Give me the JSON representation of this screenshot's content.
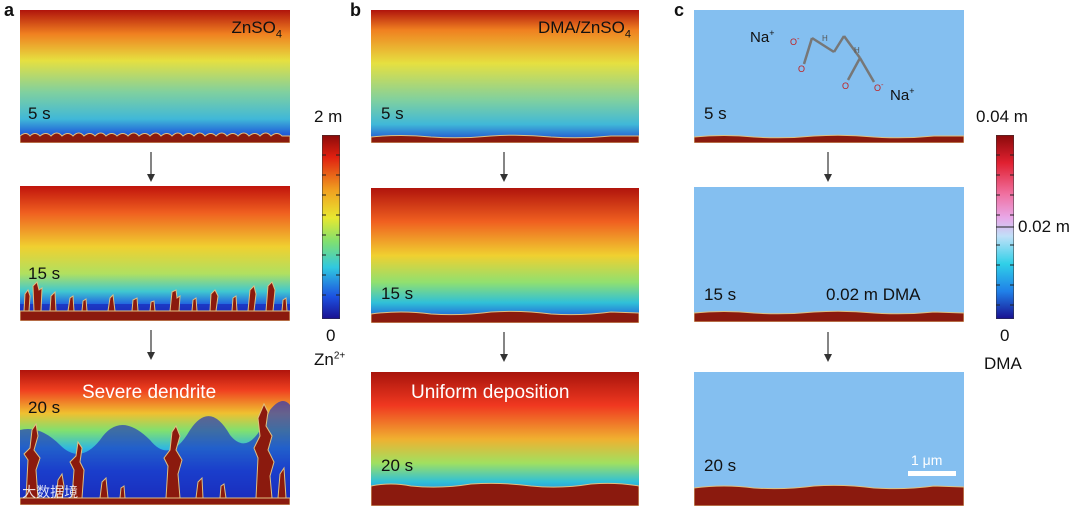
{
  "panels": {
    "a": {
      "letter": "a",
      "title": "ZnSO",
      "title_sub": "4",
      "times": [
        "5 s",
        "15 s",
        "20 s"
      ],
      "annotation": "Severe dendrite"
    },
    "b": {
      "letter": "b",
      "title": "DMA/ZnSO",
      "title_sub": "4",
      "times": [
        "5 s",
        "15 s",
        "20 s"
      ],
      "annotation": "Uniform deposition"
    },
    "c": {
      "letter": "c",
      "times": [
        "5 s",
        "15 s",
        "20 s"
      ],
      "concentration_label": "0.02 m DMA",
      "molecule": {
        "ion_left": "Na",
        "ion_right": "Na",
        "charge": "+",
        "oxygen_charge": "-",
        "atom_h": "H",
        "atom_o": "O"
      },
      "scale_bar": "1 μm"
    }
  },
  "colorbar_zn": {
    "max": "2 m",
    "min": "0",
    "species": "Zn",
    "species_sup": "2+"
  },
  "colorbar_dma": {
    "max": "0.04 m",
    "mid": "0.02 m",
    "min": "0",
    "species": "DMA"
  },
  "watermark": "大数据境",
  "colors": {
    "electrode": "#8b1a0e",
    "dma_field": "#84bff0",
    "deposit_edge": "#e0c080"
  }
}
